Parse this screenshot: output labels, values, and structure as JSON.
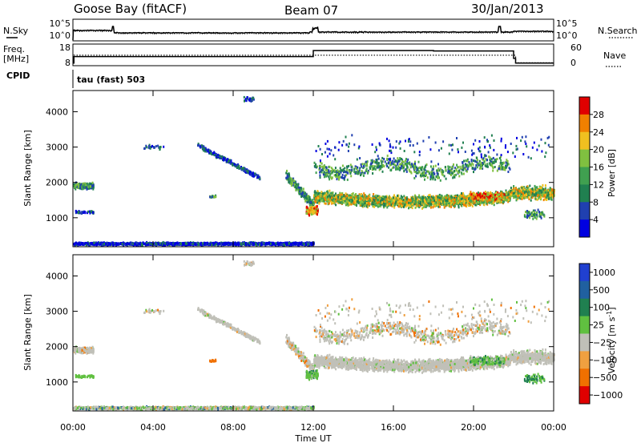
{
  "header": {
    "station": "Goose Bay (fitACF)",
    "beam": "Beam 07",
    "date": "30/Jan/2013"
  },
  "panel_labels": {
    "nsky": "N.Sky",
    "freq_line1": "Freq.",
    "freq_line2": "[MHz]",
    "cpid": "CPID",
    "nsearch": "N.Search",
    "nave": "Nave",
    "tau": "tau (fast) 503"
  },
  "chart_data": [
    {
      "type": "line",
      "name": "noise",
      "left_ticks": [
        "10^5",
        "10^0"
      ],
      "right_ticks": [
        "10^5",
        "10^0"
      ]
    },
    {
      "type": "line",
      "name": "frequency-nave",
      "left_ticks": [
        "18",
        "8"
      ],
      "right_ticks": [
        "60",
        "0"
      ],
      "ylim_left": [
        8,
        18
      ],
      "ylim_right": [
        0,
        60
      ],
      "freq_steps": [
        {
          "t": 0.0,
          "v": 9.2
        },
        {
          "t": 0.05,
          "v": 12.2
        },
        {
          "t": 12.0,
          "v": 15.0
        },
        {
          "t": 18.0,
          "v": 14.8
        },
        {
          "t": 22.0,
          "v": 11.4
        },
        {
          "t": 22.1,
          "v": 9.2
        },
        {
          "t": 24.0,
          "v": 9.2
        }
      ],
      "nave_points": [
        {
          "t": 0.0,
          "v": 8
        },
        {
          "t": 0.05,
          "v": 29
        },
        {
          "t": 12.0,
          "v": 29
        },
        {
          "t": 22.0,
          "v": 29
        },
        {
          "t": 22.1,
          "v": 8
        },
        {
          "t": 24.0,
          "v": 8
        }
      ]
    },
    {
      "type": "heatmap",
      "name": "power",
      "ylabel": "Slant Range [km]",
      "y_ticks": [
        1000,
        2000,
        3000,
        4000
      ],
      "ylim": [
        180,
        4600
      ],
      "xlim": [
        0,
        24
      ],
      "colorbar": {
        "label": "Power [dB]",
        "ticks": [
          "4",
          "8",
          "12",
          "16",
          "20",
          "24",
          "28"
        ],
        "colors": [
          "#0000e0",
          "#2040b0",
          "#208050",
          "#40a050",
          "#80c040",
          "#f0c020",
          "#f08000",
          "#e00000"
        ]
      }
    },
    {
      "type": "heatmap",
      "name": "velocity",
      "ylabel": "Slant Range [km]",
      "y_ticks": [
        1000,
        2000,
        3000,
        4000
      ],
      "ylim": [
        180,
        4600
      ],
      "xlim": [
        0,
        24
      ],
      "colorbar": {
        "label": "Velocity [m s",
        "label_sup": "-1",
        "ticks": [
          "1000",
          "500",
          "100",
          "25",
          "−25",
          "−100",
          "−500",
          "−1000"
        ],
        "colors": [
          "#2040d0",
          "#2060a0",
          "#208050",
          "#60c040",
          "#c0c0b8",
          "#f0a040",
          "#f07000",
          "#e00000"
        ]
      },
      "x_ticks": [
        "00:00",
        "04:00",
        "08:00",
        "12:00",
        "16:00",
        "20:00",
        "00:00"
      ],
      "xlabel": "Time UT"
    }
  ]
}
